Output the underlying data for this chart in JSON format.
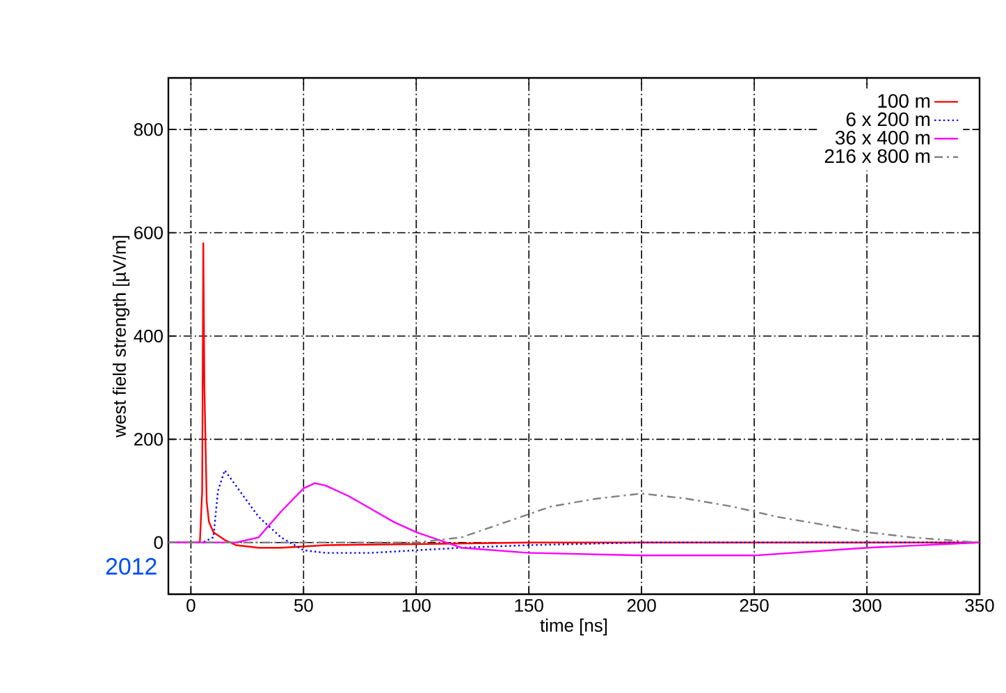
{
  "chart_data": {
    "type": "line",
    "xlabel": "time [ns]",
    "ylabel": "west field strength [µV/m]",
    "annotations": [
      "2012"
    ],
    "xlim": [
      -10,
      350
    ],
    "ylim": [
      -100,
      900
    ],
    "xticks": [
      0,
      50,
      100,
      150,
      200,
      250,
      300,
      350
    ],
    "yticks": [
      0,
      200,
      400,
      600,
      800
    ],
    "grid": true,
    "legend": "top right",
    "marker": "none",
    "series": [
      {
        "name": "100 m",
        "color": "#ff0000",
        "line_style": "solid",
        "x": [
          -10,
          3,
          4,
          5,
          5.5,
          6,
          7,
          8,
          10,
          15,
          20,
          30,
          40,
          60,
          100,
          150,
          200,
          250,
          300,
          350
        ],
        "values": [
          0,
          0,
          2,
          100,
          580,
          300,
          80,
          40,
          20,
          5,
          -5,
          -10,
          -10,
          -5,
          -3,
          0,
          0,
          0,
          0,
          0
        ]
      },
      {
        "name": "6 x 200 m",
        "color": "#0000ff",
        "line_style": "dotted",
        "x": [
          -10,
          5,
          10,
          12,
          15,
          20,
          30,
          40,
          50,
          60,
          80,
          100,
          120,
          150,
          200,
          250,
          350
        ],
        "values": [
          0,
          0,
          10,
          100,
          140,
          110,
          50,
          10,
          -15,
          -20,
          -20,
          -15,
          -10,
          -5,
          0,
          0,
          0
        ]
      },
      {
        "name": "36 x 400 m",
        "color": "#ff00ff",
        "line_style": "solid",
        "x": [
          -10,
          20,
          30,
          40,
          50,
          55,
          60,
          70,
          80,
          90,
          100,
          110,
          120,
          150,
          200,
          250,
          300,
          350
        ],
        "values": [
          0,
          0,
          10,
          60,
          105,
          115,
          110,
          90,
          65,
          40,
          20,
          5,
          -10,
          -20,
          -25,
          -25,
          -10,
          0
        ]
      },
      {
        "name": "216 x 800 m",
        "color": "#808080",
        "line_style": "dashed",
        "x": [
          -10,
          50,
          100,
          120,
          140,
          160,
          180,
          200,
          220,
          240,
          260,
          280,
          300,
          320,
          350
        ],
        "values": [
          0,
          0,
          0,
          10,
          40,
          70,
          85,
          95,
          85,
          70,
          50,
          35,
          20,
          10,
          0
        ]
      }
    ]
  }
}
